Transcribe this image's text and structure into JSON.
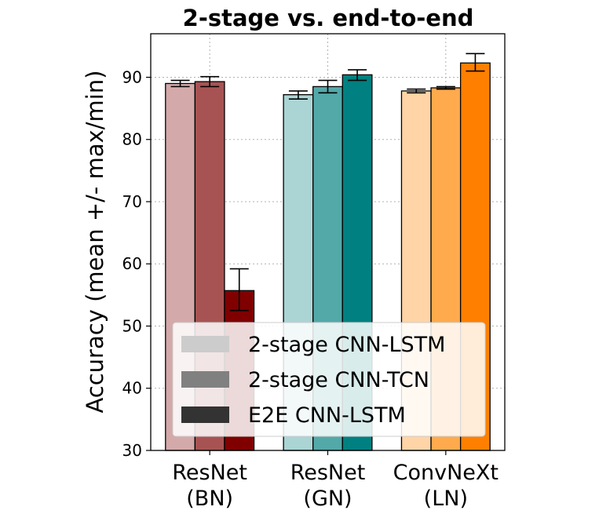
{
  "chart_data": {
    "type": "bar",
    "title": "2-stage vs. end-to-end",
    "xlabel": "",
    "ylabel": "Accuracy (mean +/- max/min)",
    "ylim": [
      30,
      97
    ],
    "yticks": [
      30,
      40,
      50,
      60,
      70,
      80,
      90
    ],
    "grid": true,
    "legend_position": "lower center",
    "categories": [
      [
        "ResNet",
        "(BN)"
      ],
      [
        "ResNet",
        "(GN)"
      ],
      [
        "ConvNeXt",
        "(LN)"
      ]
    ],
    "series": [
      {
        "name": "2-stage CNN-LSTM",
        "legend_color": "#cccccc",
        "colors": [
          "#d4a9a9",
          "#abd4d4",
          "#ffd4a6"
        ],
        "values": [
          89.0,
          87.2,
          87.8
        ],
        "err_min": [
          88.5,
          86.5,
          87.5
        ],
        "err_max": [
          89.5,
          87.8,
          88.1
        ]
      },
      {
        "name": "2-stage CNN-TCN",
        "legend_color": "#808080",
        "colors": [
          "#a85353",
          "#53a8a8",
          "#ffaa4d"
        ],
        "values": [
          89.3,
          88.5,
          88.3
        ],
        "err_min": [
          88.5,
          87.5,
          88.1
        ],
        "err_max": [
          90.1,
          89.5,
          88.5
        ]
      },
      {
        "name": "E2E CNN-LSTM",
        "legend_color": "#333333",
        "colors": [
          "#800000",
          "#008080",
          "#ff8000"
        ],
        "values": [
          55.7,
          90.4,
          92.3
        ],
        "err_min": [
          52.5,
          89.5,
          91.0
        ],
        "err_max": [
          59.2,
          91.2,
          93.8
        ]
      }
    ]
  }
}
